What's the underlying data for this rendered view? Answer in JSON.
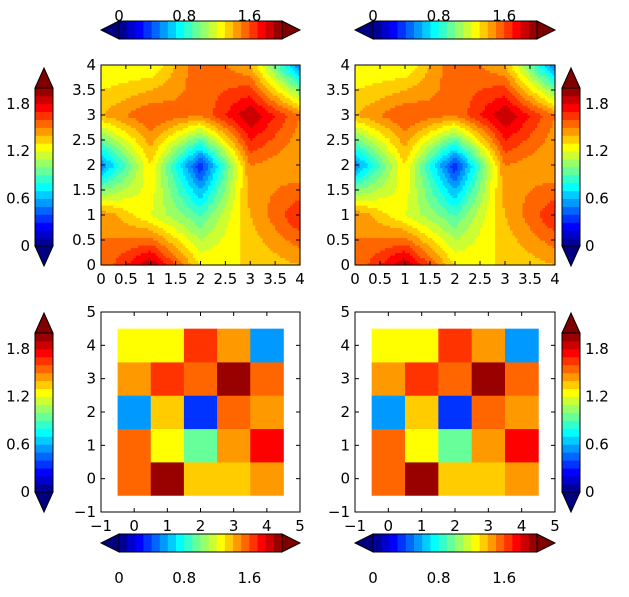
{
  "chart_data": [
    {
      "type": "heatmap",
      "subtype": "filled-contour",
      "panel": "top-left",
      "z": [
        [
          1.5,
          1.9,
          1.3,
          1.3,
          1.4
        ],
        [
          1.5,
          1.2,
          0.9,
          1.4,
          1.7
        ],
        [
          0.5,
          1.3,
          0.3,
          1.5,
          1.4
        ],
        [
          1.4,
          1.6,
          1.5,
          1.9,
          1.5
        ],
        [
          1.2,
          1.2,
          1.6,
          1.4,
          0.5
        ]
      ],
      "x": [
        0,
        1,
        2,
        3,
        4
      ],
      "y": [
        0,
        1,
        2,
        3,
        4
      ],
      "xlim": [
        0,
        4
      ],
      "ylim": [
        0,
        4
      ],
      "xticks": [
        "0",
        "0.5",
        "1",
        "1.5",
        "2",
        "2.5",
        "3",
        "3.5",
        "4"
      ],
      "yticks": [
        "0",
        "0.5",
        "1",
        "1.5",
        "2",
        "2.5",
        "3",
        "3.5",
        "4"
      ],
      "colorbar": {
        "position": "top",
        "extend": "both",
        "ticks": [
          "0",
          "0.8",
          "1.6"
        ]
      }
    },
    {
      "type": "heatmap",
      "subtype": "filled-contour",
      "panel": "top-right",
      "z": [
        [
          1.5,
          1.9,
          1.3,
          1.3,
          1.4
        ],
        [
          1.5,
          1.2,
          0.9,
          1.4,
          1.7
        ],
        [
          0.5,
          1.3,
          0.3,
          1.5,
          1.4
        ],
        [
          1.4,
          1.6,
          1.5,
          1.9,
          1.5
        ],
        [
          1.2,
          1.2,
          1.6,
          1.4,
          0.5
        ]
      ],
      "x": [
        0,
        1,
        2,
        3,
        4
      ],
      "y": [
        0,
        1,
        2,
        3,
        4
      ],
      "xlim": [
        0,
        4
      ],
      "ylim": [
        0,
        4
      ],
      "xticks": [
        "0",
        "0.5",
        "1",
        "1.5",
        "2",
        "2.5",
        "3",
        "3.5",
        "4"
      ],
      "yticks": [
        "0",
        "0.5",
        "1",
        "1.5",
        "2",
        "2.5",
        "3",
        "3.5",
        "4"
      ],
      "colorbar": {
        "position": "top",
        "extend": "both",
        "ticks": [
          "0",
          "0.8",
          "1.6"
        ]
      }
    },
    {
      "type": "heatmap",
      "subtype": "image",
      "panel": "bottom-left",
      "z": [
        [
          1.5,
          1.9,
          1.3,
          1.3,
          1.4
        ],
        [
          1.5,
          1.2,
          0.9,
          1.4,
          1.7
        ],
        [
          0.5,
          1.3,
          0.3,
          1.5,
          1.4
        ],
        [
          1.4,
          1.6,
          1.5,
          1.9,
          1.5
        ],
        [
          1.2,
          1.2,
          1.6,
          1.4,
          0.5
        ]
      ],
      "xlim": [
        -1,
        5
      ],
      "ylim": [
        -1,
        5
      ],
      "xticks": [
        "−1",
        "0",
        "1",
        "2",
        "3",
        "4",
        "5"
      ],
      "yticks": [
        "−1",
        "0",
        "1",
        "2",
        "3",
        "4",
        "5"
      ],
      "colorbar": {
        "position": "bottom",
        "extend": "both",
        "ticks": [
          "0",
          "0.8",
          "1.6"
        ]
      }
    },
    {
      "type": "heatmap",
      "subtype": "image",
      "panel": "bottom-right",
      "z": [
        [
          1.5,
          1.9,
          1.3,
          1.3,
          1.4
        ],
        [
          1.5,
          1.2,
          0.9,
          1.4,
          1.7
        ],
        [
          0.5,
          1.3,
          0.3,
          1.5,
          1.4
        ],
        [
          1.4,
          1.6,
          1.5,
          1.9,
          1.5
        ],
        [
          1.2,
          1.2,
          1.6,
          1.4,
          0.5
        ]
      ],
      "xlim": [
        -1,
        5
      ],
      "ylim": [
        -1,
        5
      ],
      "xticks": [
        "−1",
        "0",
        "1",
        "2",
        "3",
        "4",
        "5"
      ],
      "yticks": [
        "−1",
        "0",
        "1",
        "2",
        "3",
        "4",
        "5"
      ],
      "colorbar": {
        "position": "bottom",
        "extend": "both",
        "ticks": [
          "0",
          "0.8",
          "1.6"
        ]
      }
    }
  ],
  "colorbars_side": [
    {
      "side": "left",
      "panel": "top-left",
      "extend": "both",
      "ticks": [
        "0",
        "0.6",
        "1.2",
        "1.8"
      ]
    },
    {
      "side": "right",
      "panel": "top-right",
      "extend": "both",
      "ticks": [
        "0",
        "0.6",
        "1.2",
        "1.8"
      ]
    },
    {
      "side": "left",
      "panel": "bottom-left",
      "extend": "both",
      "ticks": [
        "0",
        "0.6",
        "1.2",
        "1.8"
      ]
    },
    {
      "side": "right",
      "panel": "bottom-right",
      "extend": "both",
      "ticks": [
        "0",
        "0.6",
        "1.2",
        "1.8"
      ]
    }
  ],
  "colormap": "jet",
  "color_range": [
    0,
    2
  ],
  "color_levels": 20
}
